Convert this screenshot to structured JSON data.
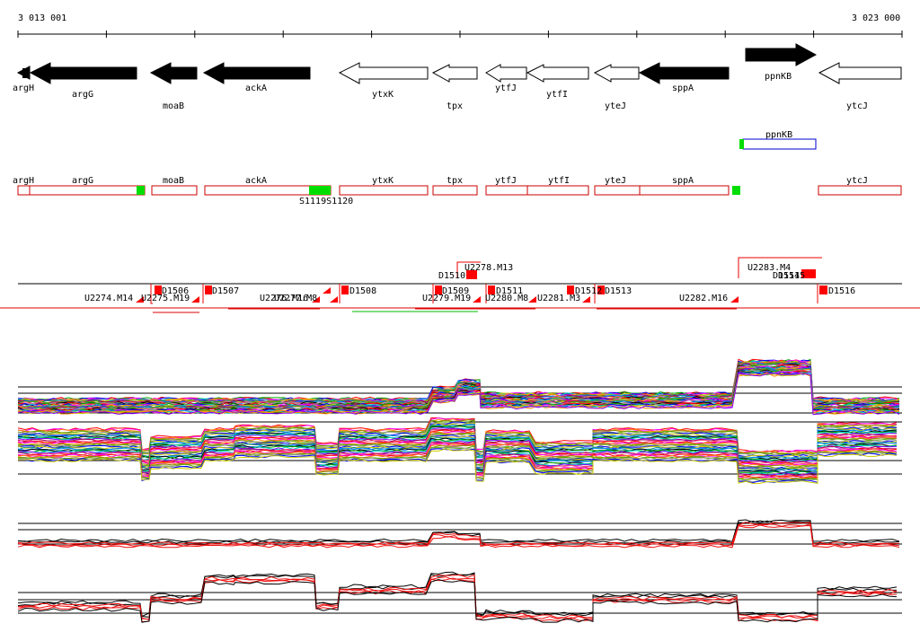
{
  "ruler": {
    "start_label": "3 013 001",
    "end_label": "3 023 000"
  },
  "genes_top": [
    {
      "name": "argH",
      "strand": "-",
      "fill": "#000000"
    },
    {
      "name": "argG",
      "strand": "-",
      "fill": "#000000"
    },
    {
      "name": "moaB",
      "strand": "-",
      "fill": "#000000"
    },
    {
      "name": "ackA",
      "strand": "-",
      "fill": "#000000"
    },
    {
      "name": "ytxK",
      "strand": "-",
      "fill": "#ffffff"
    },
    {
      "name": "tpx",
      "strand": "-",
      "fill": "#ffffff"
    },
    {
      "name": "ytfJ",
      "strand": "-",
      "fill": "#ffffff"
    },
    {
      "name": "ytfI",
      "strand": "-",
      "fill": "#ffffff"
    },
    {
      "name": "yteJ",
      "strand": "-",
      "fill": "#ffffff"
    },
    {
      "name": "sppA",
      "strand": "-",
      "fill": "#000000"
    },
    {
      "name": "ppnKB",
      "strand": "+",
      "fill": "#000000"
    },
    {
      "name": "ytcJ",
      "strand": "-",
      "fill": "#ffffff"
    }
  ],
  "plus_track": {
    "gene_label": "ppnKB"
  },
  "minus_track": {
    "gene_labels": [
      "argH",
      "argG",
      "moaB",
      "ackA",
      "ytxK",
      "tpx",
      "ytfJ",
      "ytfI",
      "yteJ",
      "sppA",
      "ytcJ"
    ],
    "feature_label": "S1119S1120"
  },
  "segments": {
    "labels": [
      "U2274.M14",
      "U2275.M19",
      "D1506",
      "D1507",
      "U2276.M16",
      "U2277.M8",
      "D1508",
      "D1509",
      "U2279.M19",
      "D1510",
      "U2278.M13",
      "D1511",
      "U2280.M8",
      "U2281.M3",
      "D1512",
      "D1513",
      "U2282.M16",
      "U2283.M4",
      "D1514",
      "D1515",
      "D1516"
    ]
  },
  "colors": {
    "gene_outline": "#000000",
    "cds_outline": "#cc0000",
    "feature_green": "#00dd00",
    "plus_box": "#0000cc",
    "segment_red": "#ff0000",
    "avg_red": "#ee1111",
    "avg_black": "#000000"
  }
}
